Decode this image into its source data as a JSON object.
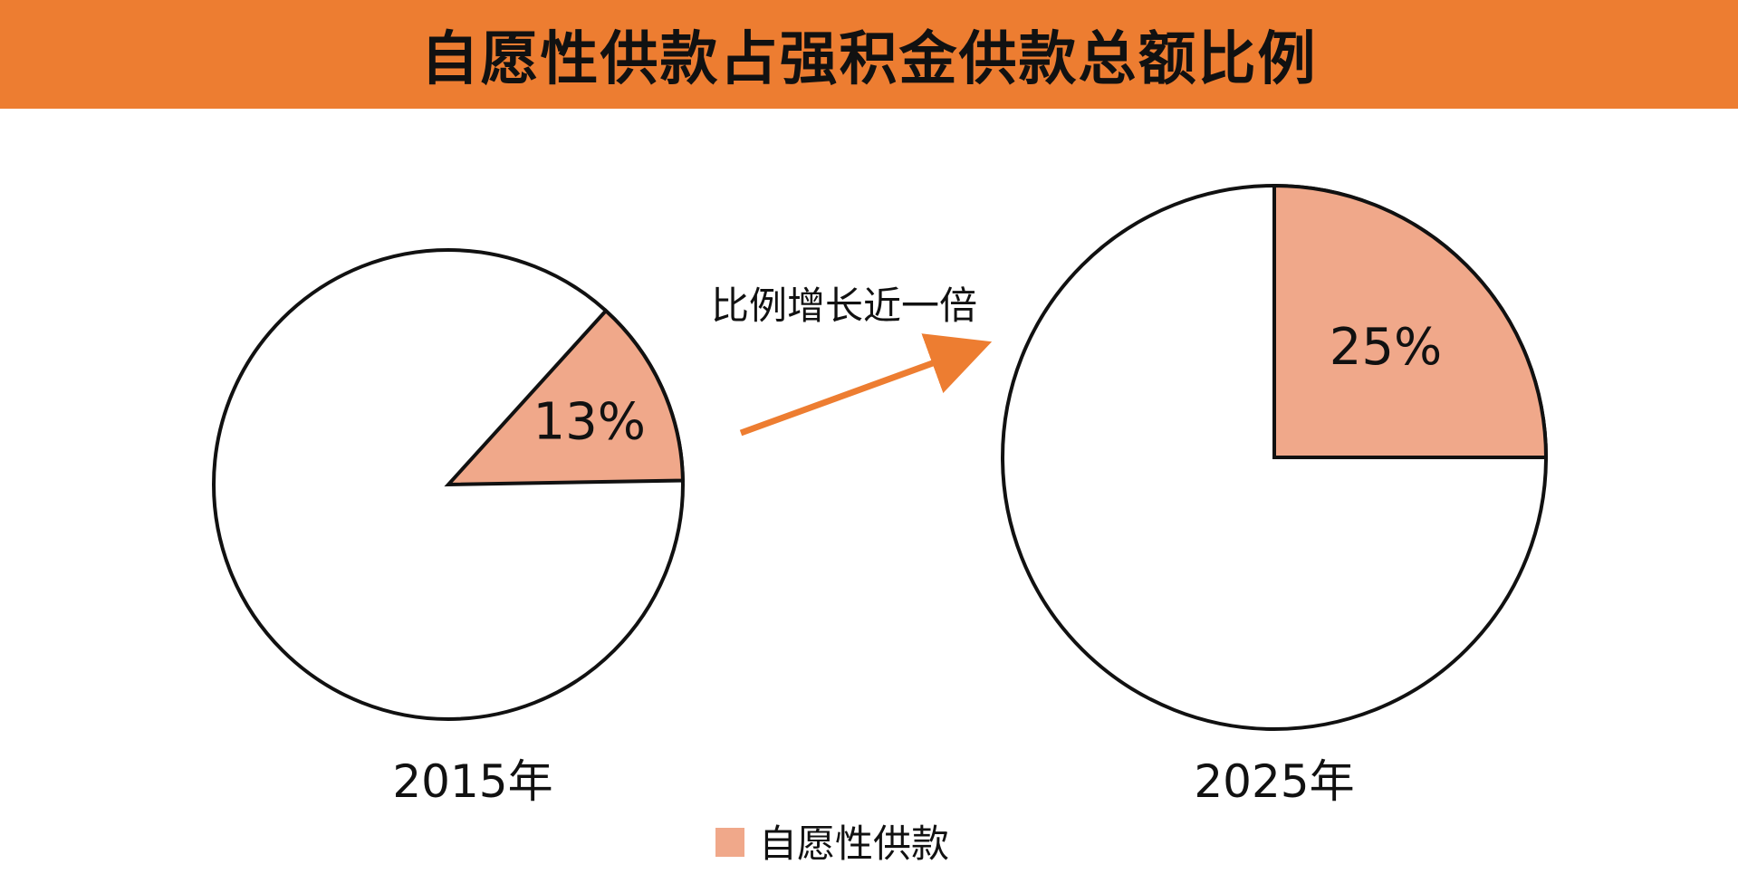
{
  "title": "自愿性供款占强积金供款总额比例",
  "colors": {
    "title_bg": "#ED7D31",
    "slice": "#F0A88A",
    "remainder": "#FFFFFF",
    "outline": "#111111",
    "arrow": "#ED7D31"
  },
  "annotation": "比例增长近一倍",
  "chart_data": [
    {
      "type": "pie",
      "label": "2015年",
      "slices": [
        {
          "name": "自愿性供款",
          "value": 13,
          "data_label": "13%"
        },
        {
          "name": "",
          "value": 87
        }
      ]
    },
    {
      "type": "pie",
      "label": "2025年",
      "slices": [
        {
          "name": "自愿性供款",
          "value": 25,
          "data_label": "25%"
        },
        {
          "name": "",
          "value": 75
        }
      ]
    }
  ],
  "legend": {
    "items": [
      {
        "label": "自愿性供款",
        "color": "#F0A88A"
      }
    ],
    "placement": "bottom"
  }
}
